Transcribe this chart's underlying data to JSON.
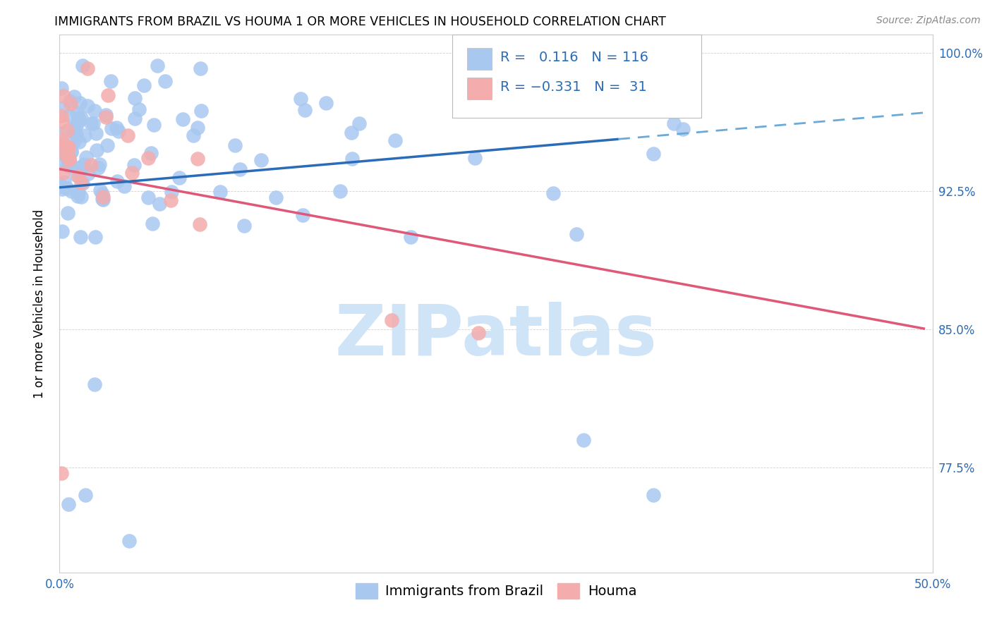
{
  "title": "IMMIGRANTS FROM BRAZIL VS HOUMA 1 OR MORE VEHICLES IN HOUSEHOLD CORRELATION CHART",
  "source_text": "Source: ZipAtlas.com",
  "ylabel": "1 or more Vehicles in Household",
  "xmin": 0.0,
  "xmax": 0.5,
  "ymin": 0.718,
  "ymax": 1.01,
  "yticks": [
    0.775,
    0.85,
    0.925,
    1.0
  ],
  "ytick_labels": [
    "77.5%",
    "85.0%",
    "92.5%",
    "100.0%"
  ],
  "xticks": [
    0.0,
    0.5
  ],
  "xtick_labels": [
    "0.0%",
    "50.0%"
  ],
  "R_brazil": 0.116,
  "N_brazil": 116,
  "R_houma": -0.331,
  "N_houma": 31,
  "blue_scatter_color": "#A8C8F0",
  "pink_scatter_color": "#F4ACAC",
  "blue_line_color": "#2B6CB8",
  "pink_line_color": "#E05878",
  "dash_line_color": "#6BAAD8",
  "watermark_color": "#D0E4F8",
  "legend_num_color": "#2B6CB8",
  "legend_label_color": "#333333",
  "title_fontsize": 12.5,
  "tick_fontsize": 12,
  "legend_fontsize": 14,
  "ylabel_fontsize": 12,
  "source_fontsize": 10
}
